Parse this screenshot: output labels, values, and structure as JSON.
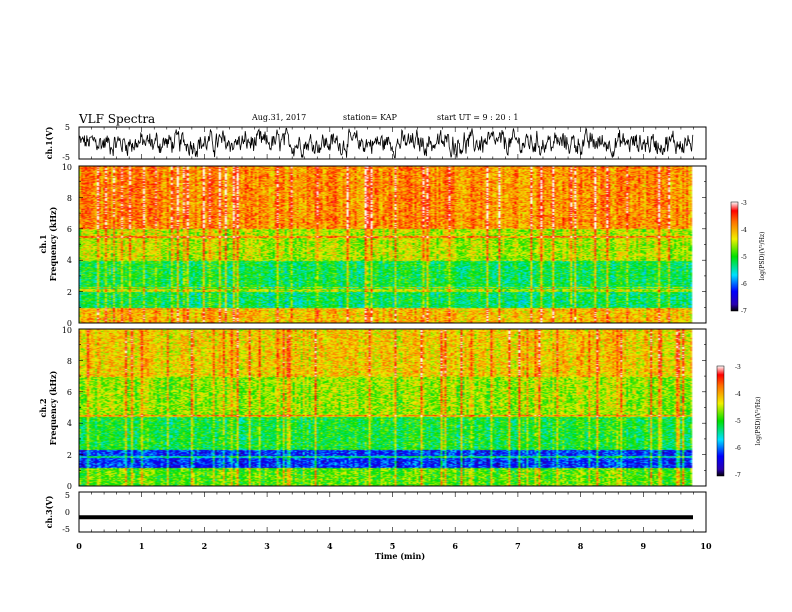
{
  "header": {
    "title": "VLF Spectra",
    "date": "Aug.31, 2017",
    "station": "station= KAP",
    "start": "start  UT =   9  : 20 : 1"
  },
  "chart_data": [
    {
      "type": "line",
      "panel": "ch1-waveform",
      "ylabel": "ch.1(V)",
      "ylim": [
        -5,
        5
      ],
      "yticks": [
        "5",
        "-5"
      ],
      "xlim": [
        0,
        10
      ]
    },
    {
      "type": "heatmap",
      "panel": "ch1-spectrogram",
      "ylabel_line1": "ch.1",
      "ylabel_line2": "Frequency (kHz)",
      "ylim": [
        0,
        10
      ],
      "yticks": [
        "0",
        "2",
        "4",
        "6",
        "8",
        "10"
      ],
      "xlim": [
        0,
        10
      ],
      "colorbar": {
        "label": "log(PSD)(V²/Hz)",
        "range": [
          -7,
          -3
        ],
        "ticks": [
          "-3",
          "-4",
          "-5",
          "-6",
          "-7"
        ]
      }
    },
    {
      "type": "heatmap",
      "panel": "ch2-spectrogram",
      "ylabel_line1": "ch.2",
      "ylabel_line2": "Frequency (kHz)",
      "ylim": [
        0,
        10
      ],
      "yticks": [
        "0",
        "2",
        "4",
        "6",
        "8",
        "10"
      ],
      "xlim": [
        0,
        10
      ],
      "colorbar": {
        "label": "log(PSD)(V²/Hz)",
        "range": [
          -7,
          -3
        ],
        "ticks": [
          "-3",
          "-4",
          "-5",
          "-6",
          "-7"
        ]
      }
    },
    {
      "type": "line",
      "panel": "ch3-waveform",
      "ylabel": "ch.3(V)",
      "ylim": [
        -5,
        5
      ],
      "yticks": [
        "5",
        "0",
        "-5"
      ],
      "xlim": [
        0,
        10
      ],
      "level": -1.3,
      "xlabel": "Time (min)",
      "xticks": [
        "0",
        "1",
        "2",
        "3",
        "4",
        "5",
        "6",
        "7",
        "8",
        "9",
        "10"
      ]
    }
  ]
}
